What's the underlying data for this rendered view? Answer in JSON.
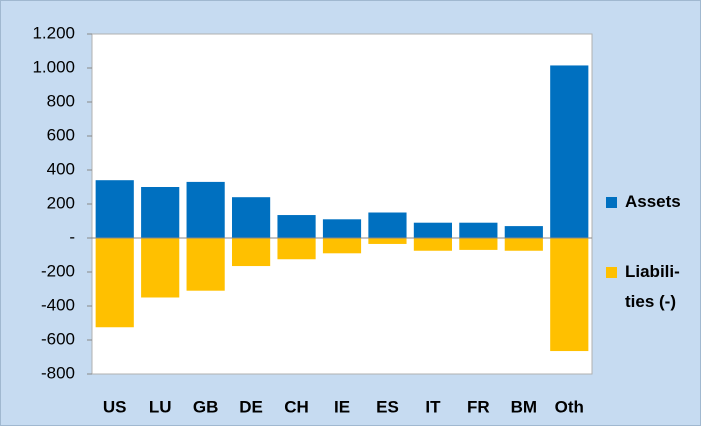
{
  "chart_data": {
    "type": "bar",
    "categories": [
      "US",
      "LU",
      "GB",
      "DE",
      "CH",
      "IE",
      "ES",
      "IT",
      "FR",
      "BM",
      "Oth"
    ],
    "series": [
      {
        "name": "Assets",
        "color": "#0070c0",
        "values": [
          340,
          300,
          330,
          240,
          135,
          110,
          150,
          90,
          90,
          70,
          1015
        ]
      },
      {
        "name": "Liabili-ties (-)",
        "color": "#ffc000",
        "values": [
          -525,
          -350,
          -310,
          -165,
          -125,
          -90,
          -35,
          -75,
          -70,
          -75,
          -665
        ]
      }
    ],
    "ylim": [
      -800,
      1200
    ],
    "yticks": [
      {
        "value": 1200,
        "label": "1.200"
      },
      {
        "value": 1000,
        "label": "1.000"
      },
      800,
      600,
      400,
      200,
      {
        "value": 0,
        "label": "-"
      },
      -200,
      -400,
      -600,
      -800
    ],
    "legend": "right"
  }
}
